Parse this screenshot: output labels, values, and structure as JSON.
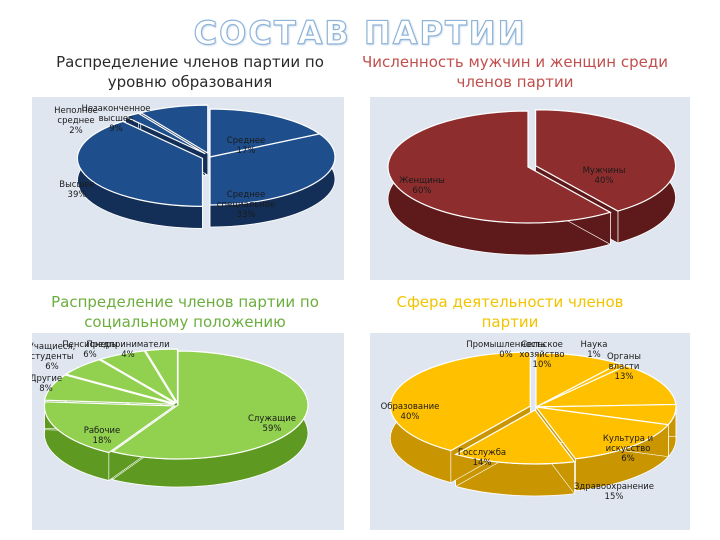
{
  "page": {
    "title": "СОСТАВ ПАРТИИ"
  },
  "chart_data": [
    {
      "type": "pie",
      "title": [
        "Распределение членов партии по",
        "уровню образования"
      ],
      "categories": [
        "Среднее",
        "Среднее специальное",
        "Высшее",
        "Неполное среднее",
        "Незаконченное высшее"
      ],
      "values": [
        17,
        33,
        39,
        2,
        9
      ],
      "labels": [
        {
          "lines": [
            "Среднее",
            "17%"
          ]
        },
        {
          "lines": [
            "Среднее",
            "специальное",
            "33%"
          ]
        },
        {
          "lines": [
            "Высшее",
            "39%"
          ]
        },
        {
          "lines": [
            "Неполное",
            "среднее",
            "2%"
          ]
        },
        {
          "lines": [
            "Незаконченное",
            "высшее",
            "9%"
          ]
        }
      ],
      "colors": {
        "top": "#1f4e8c",
        "side": "#142f57",
        "edge": "#ffffff"
      }
    },
    {
      "type": "pie",
      "title": [
        "Численность мужчин и женщин среди",
        "членов партии"
      ],
      "categories": [
        "Мужчины",
        "Женщины"
      ],
      "values": [
        40,
        60
      ],
      "labels": [
        {
          "lines": [
            "Мужчины",
            "40%"
          ]
        },
        {
          "lines": [
            "Женщины",
            "60%"
          ]
        }
      ],
      "colors": {
        "top": "#8e2d2d",
        "side": "#5e1a1a",
        "edge": "#ffffff"
      }
    },
    {
      "type": "pie",
      "title": [
        "Распределение членов партии по",
        "социальному положению"
      ],
      "categories": [
        "Служащие",
        "Рабочие",
        "Другие",
        "Учащиеся, студенты",
        "Пенсионеры",
        "Предприниматели"
      ],
      "values": [
        59,
        18,
        8,
        6,
        6,
        4
      ],
      "labels": [
        {
          "lines": [
            "Служащие",
            "59%"
          ]
        },
        {
          "lines": [
            "Рабочие",
            "18%"
          ]
        },
        {
          "lines": [
            "Другие",
            "8%"
          ]
        },
        {
          "lines": [
            "Учащиеся,",
            "студенты",
            "6%"
          ]
        },
        {
          "lines": [
            "Пенсионеры",
            "6%"
          ]
        },
        {
          "lines": [
            "Предприниматели",
            "4%"
          ]
        }
      ],
      "colors": {
        "top": "#92d050",
        "side": "#5e9a22",
        "edge": "#ffffff"
      }
    },
    {
      "type": "pie",
      "title": [
        "Сфера деятельности членов",
        "партии"
      ],
      "categories": [
        "Промышленность",
        "Сельское хозяйство",
        "Наука",
        "Органы власти",
        "Культура и искусство",
        "Здравоохранение",
        "Госслужба",
        "Образование"
      ],
      "values": [
        0,
        10,
        1,
        13,
        6,
        15,
        14,
        40
      ],
      "labels": [
        {
          "lines": [
            "Промышленность",
            "0%"
          ]
        },
        {
          "lines": [
            "Сельское",
            "хозяйство",
            "10%"
          ]
        },
        {
          "lines": [
            "Наука",
            "1%"
          ]
        },
        {
          "lines": [
            "Органы",
            "власти",
            "13%"
          ]
        },
        {
          "lines": [
            "Культура и",
            "искусство",
            "6%"
          ]
        },
        {
          "lines": [
            "Здравоохранение",
            "15%"
          ]
        },
        {
          "lines": [
            "Госслужба",
            "14%"
          ]
        },
        {
          "lines": [
            "Образование",
            "40%"
          ]
        }
      ],
      "colors": {
        "top": "#ffc000",
        "side": "#c99500",
        "edge": "#ffffff"
      }
    }
  ]
}
